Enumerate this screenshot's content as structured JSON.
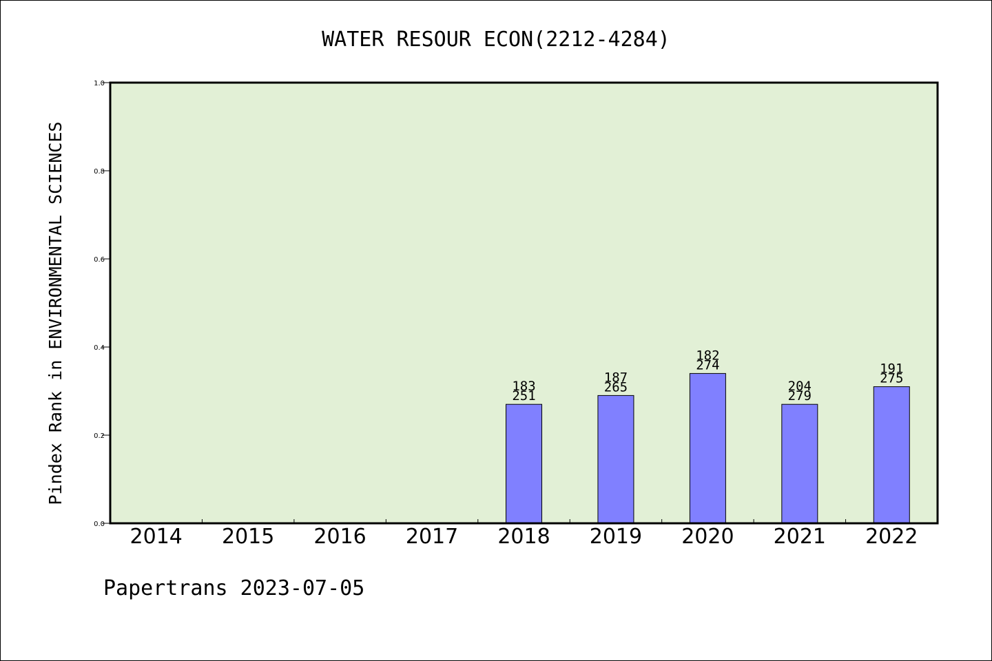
{
  "chart_data": {
    "type": "bar",
    "title": "WATER RESOUR ECON(2212-4284)",
    "xlabel": "",
    "ylabel": "Pindex Rank in ENVIRONMENTAL SCIENCES",
    "categories": [
      "2014",
      "2015",
      "2016",
      "2017",
      "2018",
      "2019",
      "2020",
      "2021",
      "2022"
    ],
    "values": [
      null,
      null,
      null,
      null,
      0.27,
      0.29,
      0.34,
      0.27,
      0.31
    ],
    "ranks": [
      "",
      "",
      "",
      "",
      "183",
      "187",
      "182",
      "204",
      "191"
    ],
    "totals": [
      "",
      "",
      "",
      "",
      "251",
      "265",
      "274",
      "279",
      "275"
    ],
    "ylim": [
      0,
      1.0
    ],
    "yticks": [
      "0.0",
      "0.2",
      "0.4",
      "0.6",
      "0.8",
      "1.0"
    ],
    "grid": false,
    "colors": {
      "bar": "#8080ff",
      "plot_background": "#e2f0d6",
      "axis": "#000000"
    }
  },
  "footer": {
    "text": "Papertrans 2023-07-05"
  }
}
